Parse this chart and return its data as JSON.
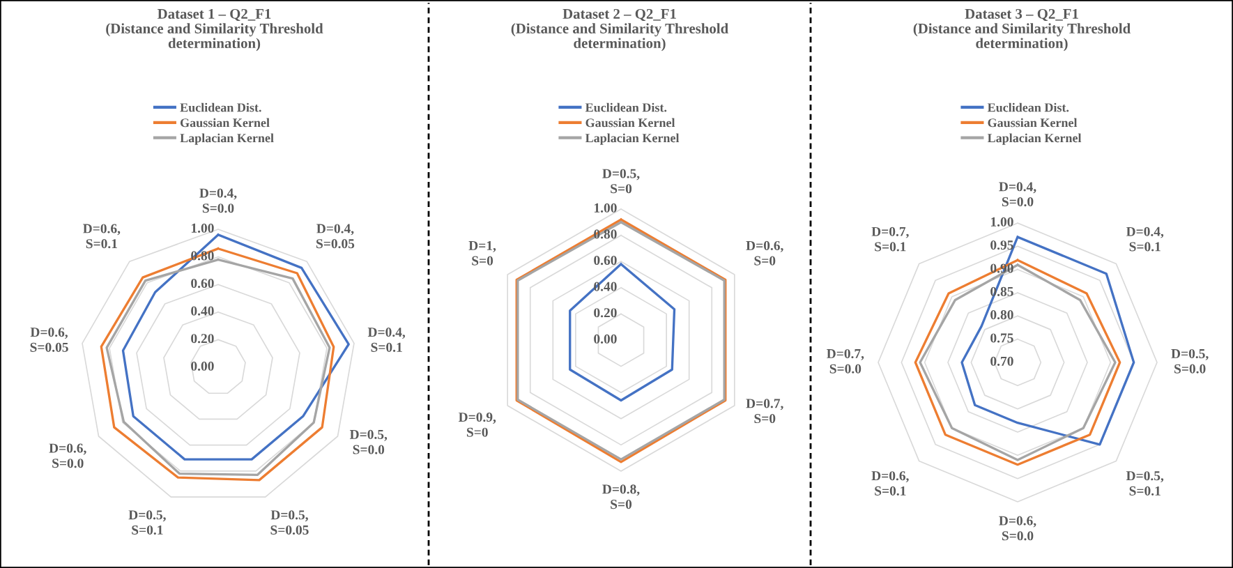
{
  "chart_data": [
    {
      "type": "radar",
      "title": "Dataset 1 – Q2_F1\n(Distance and Similarity Threshold\ndetermination)",
      "categories": [
        "D=0.4,\nS=0.0",
        "D=0.4,\nS=0.05",
        "D=0.4,\nS=0.1",
        "D=0.5,\nS=0.0",
        "D=0.5,\nS=0.05",
        "D=0.5,\nS=0.1",
        "D=0.6,\nS=0.0",
        "D=0.6,\nS=0.05",
        "D=0.6,\nS=0.1"
      ],
      "ylim": [
        0,
        1
      ],
      "yticks": [
        {
          "value": 0,
          "label": "0.00"
        },
        {
          "value": 0.2,
          "label": "0.20"
        },
        {
          "value": 0.4,
          "label": "0.40"
        },
        {
          "value": 0.6,
          "label": "0.60"
        },
        {
          "value": 0.8,
          "label": "0.80"
        },
        {
          "value": 1,
          "label": "1.00"
        }
      ],
      "legend": "top",
      "grid": true,
      "series": [
        {
          "name": "Euclidean Dist.",
          "color": "#4472c4",
          "values": [
            0.96,
            0.94,
            0.96,
            0.71,
            0.71,
            0.71,
            0.71,
            0.7,
            0.71
          ]
        },
        {
          "name": "Gaussian Kernel",
          "color": "#ed7d31",
          "values": [
            0.86,
            0.89,
            0.85,
            0.87,
            0.87,
            0.85,
            0.87,
            0.86,
            0.85
          ]
        },
        {
          "name": "Laplacian Kernel",
          "color": "#a5a5a5",
          "values": [
            0.78,
            0.84,
            0.82,
            0.8,
            0.83,
            0.82,
            0.79,
            0.82,
            0.82
          ]
        }
      ]
    },
    {
      "type": "radar",
      "title": "Dataset 2 – Q2_F1\n(Distance and Similarity Threshold\ndetermination)",
      "categories": [
        "D=0.5,\nS=0",
        "D=0.6,\nS=0",
        "D=0.7,\nS=0",
        "D=0.8,\nS=0",
        "D=0.9,\nS=0",
        "D=1,\nS=0"
      ],
      "ylim": [
        0,
        1
      ],
      "yticks": [
        {
          "value": 0,
          "label": "0.00"
        },
        {
          "value": 0.2,
          "label": "0.20"
        },
        {
          "value": 0.4,
          "label": "0.40"
        },
        {
          "value": 0.6,
          "label": "0.60"
        },
        {
          "value": 0.8,
          "label": "0.80"
        },
        {
          "value": 1,
          "label": "1.00"
        }
      ],
      "legend": "top",
      "grid": true,
      "series": [
        {
          "name": "Euclidean Dist.",
          "color": "#4472c4",
          "values": [
            0.58,
            0.47,
            0.45,
            0.46,
            0.45,
            0.45
          ]
        },
        {
          "name": "Gaussian Kernel",
          "color": "#ed7d31",
          "values": [
            0.92,
            0.92,
            0.92,
            0.93,
            0.92,
            0.92
          ]
        },
        {
          "name": "Laplacian Kernel",
          "color": "#a5a5a5",
          "values": [
            0.9,
            0.91,
            0.91,
            0.91,
            0.91,
            0.91
          ]
        }
      ]
    },
    {
      "type": "radar",
      "title": "Dataset 3 – Q2_F1\n(Distance and Similarity Threshold\ndetermination)",
      "categories": [
        "D=0.4,\nS=0.0",
        "D=0.4,\nS=0.1",
        "D=0.5,\nS=0.0",
        "D=0.5,\nS=0.1",
        "D=0.6,\nS=0.0",
        "D=0.6,\nS=0.1",
        "D=0.7,\nS=0.0",
        "D=0.7,\nS=0.1"
      ],
      "ylim": [
        0.7,
        1
      ],
      "yticks": [
        {
          "value": 0.7,
          "label": "0.70"
        },
        {
          "value": 0.75,
          "label": "0.75"
        },
        {
          "value": 0.8,
          "label": "0.80"
        },
        {
          "value": 0.85,
          "label": "0.85"
        },
        {
          "value": 0.9,
          "label": "0.90"
        },
        {
          "value": 0.95,
          "label": "0.95"
        },
        {
          "value": 1,
          "label": "1.00"
        }
      ],
      "legend": "top",
      "grid": true,
      "series": [
        {
          "name": "Euclidean Dist.",
          "color": "#4472c4",
          "values": [
            0.97,
            0.97,
            0.95,
            0.95,
            0.83,
            0.83,
            0.82,
            0.81
          ]
        },
        {
          "name": "Gaussian Kernel",
          "color": "#ed7d31",
          "values": [
            0.92,
            0.91,
            0.92,
            0.92,
            0.92,
            0.92,
            0.92,
            0.91
          ]
        },
        {
          "name": "Laplacian Kernel",
          "color": "#a5a5a5",
          "values": [
            0.91,
            0.89,
            0.91,
            0.9,
            0.91,
            0.9,
            0.91,
            0.89
          ]
        }
      ]
    }
  ]
}
